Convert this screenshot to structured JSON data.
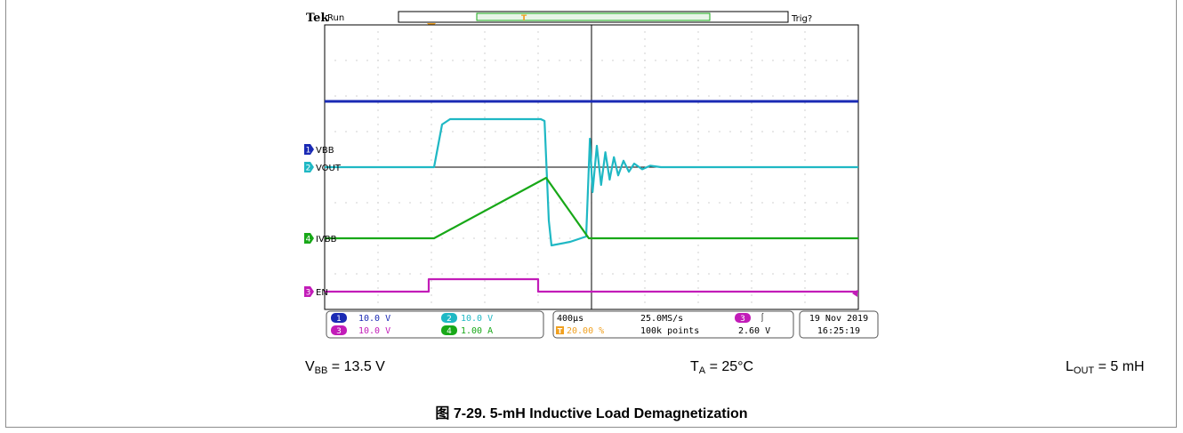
{
  "colors": {
    "ch1": "#1a2ab4",
    "ch2": "#1fb8c4",
    "ch3": "#c21cb8",
    "ch4": "#18a818",
    "trigger": "#f0a020",
    "grid": "#bdbdbd"
  },
  "scope": {
    "brand": "Tek",
    "state": "Run",
    "trig_status": "Trig?",
    "trigger_marker": "T",
    "ch_labels": [
      "VBB",
      "VOUT",
      "IVBB",
      "EN"
    ],
    "ch_numbers": [
      "1",
      "2",
      "4",
      "3"
    ],
    "readout": {
      "ch1_num": "1",
      "ch1_scale": "10.0 V",
      "ch2_num": "2",
      "ch2_scale": "10.0 V",
      "ch3_num": "3",
      "ch3_scale": "10.0 V",
      "ch4_num": "4",
      "ch4_scale": "1.00 A",
      "timebase": "400µs",
      "sample_rate": "25.0MS/s",
      "trig_pos_marker": "T",
      "trig_pos": "20.00 %",
      "record_len": "100k points",
      "trig_src": "3",
      "trig_slope": "⎰",
      "trig_level": "2.60 V",
      "date": "19 Nov 2019",
      "time": "16:25:19"
    }
  },
  "conditions": {
    "vbb_main": "V",
    "vbb_sub": "BB",
    "vbb_value": " = 13.5 V",
    "ta_main": "T",
    "ta_sub": "A",
    "ta_value": " = 25°C",
    "lout_main": "L",
    "lout_sub": "OUT",
    "lout_value": " = 5 mH"
  },
  "caption": "图 7-29. 5-mH Inductive Load Demagnetization",
  "chart_data": {
    "type": "line",
    "time_per_div": "400µs",
    "x_unit": "divisions",
    "xlim": [
      0,
      10
    ],
    "ylim": [
      -4,
      4
    ],
    "grid": true,
    "series": [
      {
        "name": "VBB",
        "scale": "10.0 V",
        "points": [
          [
            0,
            1.35
          ],
          [
            10,
            1.35
          ]
        ]
      },
      {
        "name": "VOUT",
        "scale": "10.0 V",
        "points": [
          [
            0,
            0
          ],
          [
            2.05,
            0
          ],
          [
            2.2,
            1.2
          ],
          [
            2.35,
            1.35
          ],
          [
            4.05,
            1.35
          ],
          [
            4.12,
            1.3
          ],
          [
            4.2,
            -1.5
          ],
          [
            4.25,
            -2.2
          ],
          [
            4.6,
            -2.1
          ],
          [
            4.9,
            -1.95
          ],
          [
            4.97,
            0.8
          ],
          [
            5.02,
            -0.7
          ],
          [
            5.1,
            0.6
          ],
          [
            5.18,
            -0.5
          ],
          [
            5.26,
            0.42
          ],
          [
            5.34,
            -0.35
          ],
          [
            5.42,
            0.28
          ],
          [
            5.5,
            -0.23
          ],
          [
            5.6,
            0.18
          ],
          [
            5.7,
            -0.13
          ],
          [
            5.8,
            0.1
          ],
          [
            5.95,
            -0.06
          ],
          [
            6.1,
            0.04
          ],
          [
            6.3,
            0
          ],
          [
            10,
            0
          ]
        ]
      },
      {
        "name": "IVBB",
        "scale": "1.00 A",
        "points": [
          [
            0,
            0
          ],
          [
            2.05,
            0
          ],
          [
            4.15,
            1.7
          ],
          [
            4.95,
            0
          ],
          [
            10,
            0
          ]
        ]
      },
      {
        "name": "EN",
        "scale": "10.0 V",
        "points": [
          [
            0,
            0
          ],
          [
            1.95,
            0
          ],
          [
            1.95,
            0.35
          ],
          [
            4.0,
            0.35
          ],
          [
            4.0,
            0
          ],
          [
            10,
            0
          ]
        ]
      }
    ]
  }
}
